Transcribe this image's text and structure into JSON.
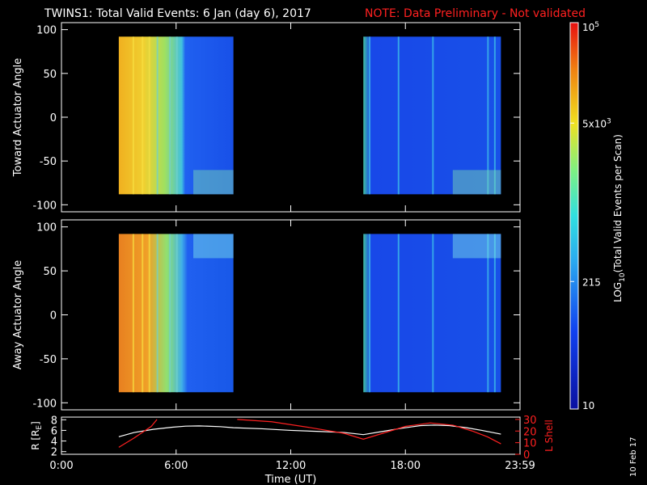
{
  "header": {
    "title": "TWINS1: Total Valid Events:  6 Jan (day   6), 2017",
    "note": "NOTE: Data Preliminary - Not validated"
  },
  "colors": {
    "background": "#000000",
    "axes": "#ffffff",
    "note": "#ff2020",
    "r_line": "#ffffff",
    "lshell_line": "#ff2020"
  },
  "side_stamp": "10 Feb 17",
  "chart_data": [
    {
      "type": "heatmap",
      "ylabel": "Toward Actuator Angle",
      "ylim": [
        -108,
        108
      ],
      "yticks": [
        100,
        50,
        0,
        -50,
        -100
      ],
      "xlim": [
        0,
        24
      ],
      "data_blocks": [
        {
          "x_range": [
            3.0,
            9.0
          ],
          "y_range": [
            -88,
            92
          ]
        },
        {
          "x_range": [
            15.8,
            23.0
          ],
          "y_range": [
            -88,
            92
          ]
        }
      ]
    },
    {
      "type": "heatmap",
      "ylabel": "Away Actuator Angle",
      "ylim": [
        -108,
        108
      ],
      "yticks": [
        100,
        50,
        0,
        -50,
        -100
      ],
      "xlim": [
        0,
        24
      ],
      "data_blocks": [
        {
          "x_range": [
            3.0,
            9.0
          ],
          "y_range": [
            -88,
            92
          ]
        },
        {
          "x_range": [
            15.8,
            23.0
          ],
          "y_range": [
            -88,
            92
          ]
        }
      ]
    },
    {
      "type": "line",
      "xlabel": "Time (UT)",
      "xlim": [
        0,
        24
      ],
      "xtick_labels": [
        "0:00",
        "6:00",
        "12:00",
        "18:00",
        "23:59"
      ],
      "xtick_values": [
        0,
        6,
        12,
        18,
        24
      ],
      "left_axis": {
        "label": "R [R",
        "label_sub": "E",
        "label_end": "]",
        "ylim": [
          1.5,
          8.5
        ],
        "ticks": [
          2,
          4,
          6,
          8
        ]
      },
      "right_axis": {
        "label": "L Shell",
        "ylim": [
          0,
          32
        ],
        "ticks": [
          0,
          10,
          20,
          30
        ]
      },
      "series": [
        {
          "axis": "left",
          "x": [
            3.0,
            3.8,
            4.8,
            5.8,
            6.5,
            7.2,
            8.3,
            9.0,
            10.5,
            12.0,
            13.5,
            14.8,
            15.8,
            16.8,
            17.8,
            18.8,
            19.5,
            20.3,
            21.2,
            22.0,
            23.0
          ],
          "y": [
            4.8,
            5.6,
            6.2,
            6.6,
            6.8,
            6.85,
            6.7,
            6.5,
            6.3,
            6.0,
            5.8,
            5.6,
            5.2,
            5.8,
            6.4,
            6.9,
            7.0,
            6.9,
            6.5,
            6.0,
            5.3
          ]
        },
        {
          "axis": "right",
          "x": [
            3.0,
            3.8,
            4.7,
            5.0
          ],
          "y": [
            6,
            14,
            24,
            30
          ]
        },
        {
          "axis": "right",
          "x": [
            9.2,
            11.0,
            13.0,
            14.8,
            15.8,
            16.8,
            18.0,
            19.3,
            20.5,
            21.5,
            22.3,
            23.0
          ],
          "y": [
            30,
            28,
            23,
            18,
            13,
            18,
            24,
            27,
            25,
            20,
            15,
            9
          ]
        }
      ]
    }
  ],
  "colorbar": {
    "label": "LOG",
    "label_sub": "10",
    "label_end": "(Total Valid  Events per Scan)",
    "ticks": [
      {
        "text": "10",
        "sup": "5",
        "frac": 1.0
      },
      {
        "text": "5x10",
        "sup": "3",
        "frac": 0.74
      },
      {
        "text": "215",
        "frac": 0.33
      },
      {
        "text": "10",
        "frac": 0.0
      }
    ]
  }
}
